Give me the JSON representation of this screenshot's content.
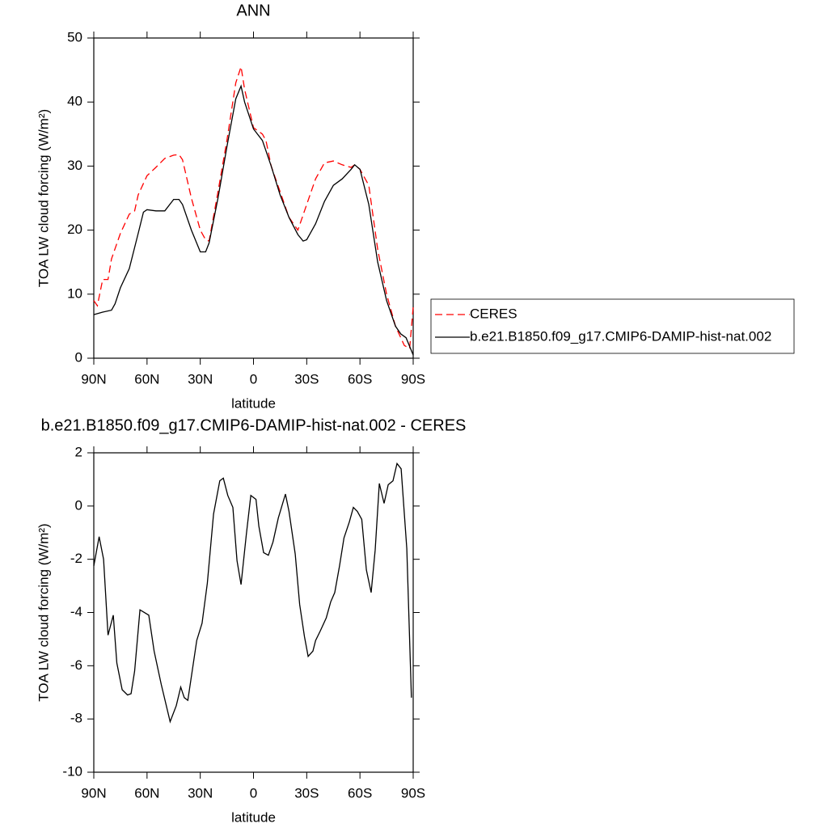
{
  "chart_data": [
    {
      "type": "line",
      "title": "ANN",
      "xlabel": "latitude",
      "ylabel": "TOA LW cloud forcing (W/m²)",
      "xlim": [
        90,
        -90
      ],
      "ylim": [
        0,
        50
      ],
      "xticks": [
        {
          "value": 90,
          "label": "90N"
        },
        {
          "value": 60,
          "label": "60N"
        },
        {
          "value": 30,
          "label": "30N"
        },
        0,
        {
          "value": -30,
          "label": "30S"
        },
        {
          "value": -60,
          "label": "60S"
        },
        {
          "value": -90,
          "label": "90S"
        }
      ],
      "yticks": [
        0,
        10,
        20,
        30,
        40,
        50
      ],
      "legend": "right",
      "series": [
        {
          "name": "CERES",
          "color": "#ff0000",
          "dash": "dashed",
          "x": [
            90,
            88,
            85,
            82,
            80,
            75,
            70,
            67,
            65,
            60,
            55,
            50,
            45,
            42,
            40,
            35,
            30,
            27,
            25,
            20,
            15,
            10,
            7,
            5,
            0,
            -5,
            -7,
            -10,
            -15,
            -20,
            -25,
            -30,
            -35,
            -40,
            -45,
            -50,
            -55,
            -57,
            -60,
            -65,
            -70,
            -75,
            -80,
            -85,
            -88,
            -90
          ],
          "values": [
            9,
            8.2,
            12.3,
            12.3,
            15.5,
            19.5,
            22.5,
            23,
            25.5,
            28.5,
            29.8,
            31.2,
            31.7,
            31.8,
            31,
            25,
            20,
            18.5,
            18.3,
            26,
            34,
            43,
            45.5,
            42,
            36,
            35,
            34,
            30,
            26,
            22,
            20,
            24,
            28,
            30.5,
            30.8,
            30.2,
            29.8,
            30.2,
            29.5,
            27,
            17,
            10,
            5,
            2,
            1.5,
            8
          ]
        },
        {
          "name": "b.e21.B1850.f09_g17.CMIP6-DAMIP-hist-nat.002",
          "color": "#000000",
          "dash": "solid",
          "x": [
            90,
            85,
            80,
            78,
            75,
            70,
            65,
            62,
            60,
            55,
            50,
            45,
            42,
            40,
            35,
            30,
            27,
            25,
            20,
            15,
            10,
            7,
            5,
            0,
            -5,
            -10,
            -15,
            -20,
            -25,
            -28,
            -30,
            -35,
            -40,
            -45,
            -50,
            -55,
            -57,
            -60,
            -65,
            -70,
            -75,
            -80,
            -83,
            -86,
            -90
          ],
          "values": [
            6.8,
            7.2,
            7.5,
            8.5,
            11,
            14,
            19.5,
            22.8,
            23.2,
            23,
            23,
            24.8,
            24.8,
            24,
            20,
            16.6,
            16.6,
            18,
            25,
            33,
            40.5,
            42.5,
            40,
            35.8,
            34,
            30,
            25.5,
            22,
            19.3,
            18.3,
            18.5,
            21,
            24.5,
            27,
            28,
            29.5,
            30.2,
            29.5,
            24,
            15,
            9,
            5,
            3.8,
            3.2,
            0.5
          ]
        }
      ]
    },
    {
      "type": "line",
      "title": "b.e21.B1850.f09_g17.CMIP6-DAMIP-hist-nat.002 - CERES",
      "xlabel": "latitude",
      "ylabel": "TOA LW cloud forcing (W/m²)",
      "xlim": [
        90,
        -90
      ],
      "ylim": [
        -10,
        2
      ],
      "xticks": [
        {
          "value": 90,
          "label": "90N"
        },
        {
          "value": 60,
          "label": "60N"
        },
        {
          "value": 30,
          "label": "30N"
        },
        0,
        {
          "value": -30,
          "label": "30S"
        },
        {
          "value": -60,
          "label": "60S"
        },
        {
          "value": -90,
          "label": "90S"
        }
      ],
      "yticks": [
        -10,
        -8,
        -6,
        -4,
        -2,
        0,
        2
      ],
      "series": [
        {
          "color": "#000000",
          "dash": "solid",
          "x": [
            90,
            87,
            84.5,
            82,
            79,
            77,
            74,
            71,
            69,
            67,
            64,
            59,
            56,
            52,
            47,
            43.5,
            41,
            39,
            37,
            32,
            29,
            26,
            22.5,
            19,
            17,
            14.5,
            11.6,
            9.3,
            7,
            4,
            1.5,
            -1.4,
            -3,
            -5.7,
            -8.4,
            -11,
            -14,
            -18,
            -20,
            -23.5,
            -26,
            -28.7,
            -30.8,
            -33.5,
            -35,
            -37.6,
            -41,
            -43.5,
            -45.8,
            -48.5,
            -51,
            -54,
            -56.3,
            -58.5,
            -61,
            -63.6,
            -66.3,
            -68.6,
            -70.9,
            -73.6,
            -75.9,
            -78.6,
            -80.9,
            -83.2,
            -86.4,
            -89
          ],
          "values": [
            -2.25,
            -1.15,
            -2,
            -4.85,
            -4.1,
            -5.9,
            -6.9,
            -7.1,
            -7.05,
            -6.2,
            -3.9,
            -4.1,
            -5.45,
            -6.7,
            -8.1,
            -7.5,
            -6.8,
            -7.2,
            -7.3,
            -5.05,
            -4.4,
            -2.9,
            -0.3,
            0.95,
            1.05,
            0.4,
            -0.05,
            -2.05,
            -2.95,
            -1.05,
            0.4,
            0.25,
            -0.75,
            -1.75,
            -1.85,
            -1.35,
            -0.45,
            0.45,
            -0.2,
            -1.8,
            -3.7,
            -4.9,
            -5.65,
            -5.45,
            -5.05,
            -4.7,
            -4.2,
            -3.6,
            -3.25,
            -2.25,
            -1.2,
            -0.6,
            -0.05,
            -0.2,
            -0.5,
            -2.4,
            -3.25,
            -1.65,
            0.85,
            0.1,
            0.8,
            0.95,
            1.6,
            1.4,
            -1.6,
            -7.2
          ]
        }
      ]
    }
  ]
}
